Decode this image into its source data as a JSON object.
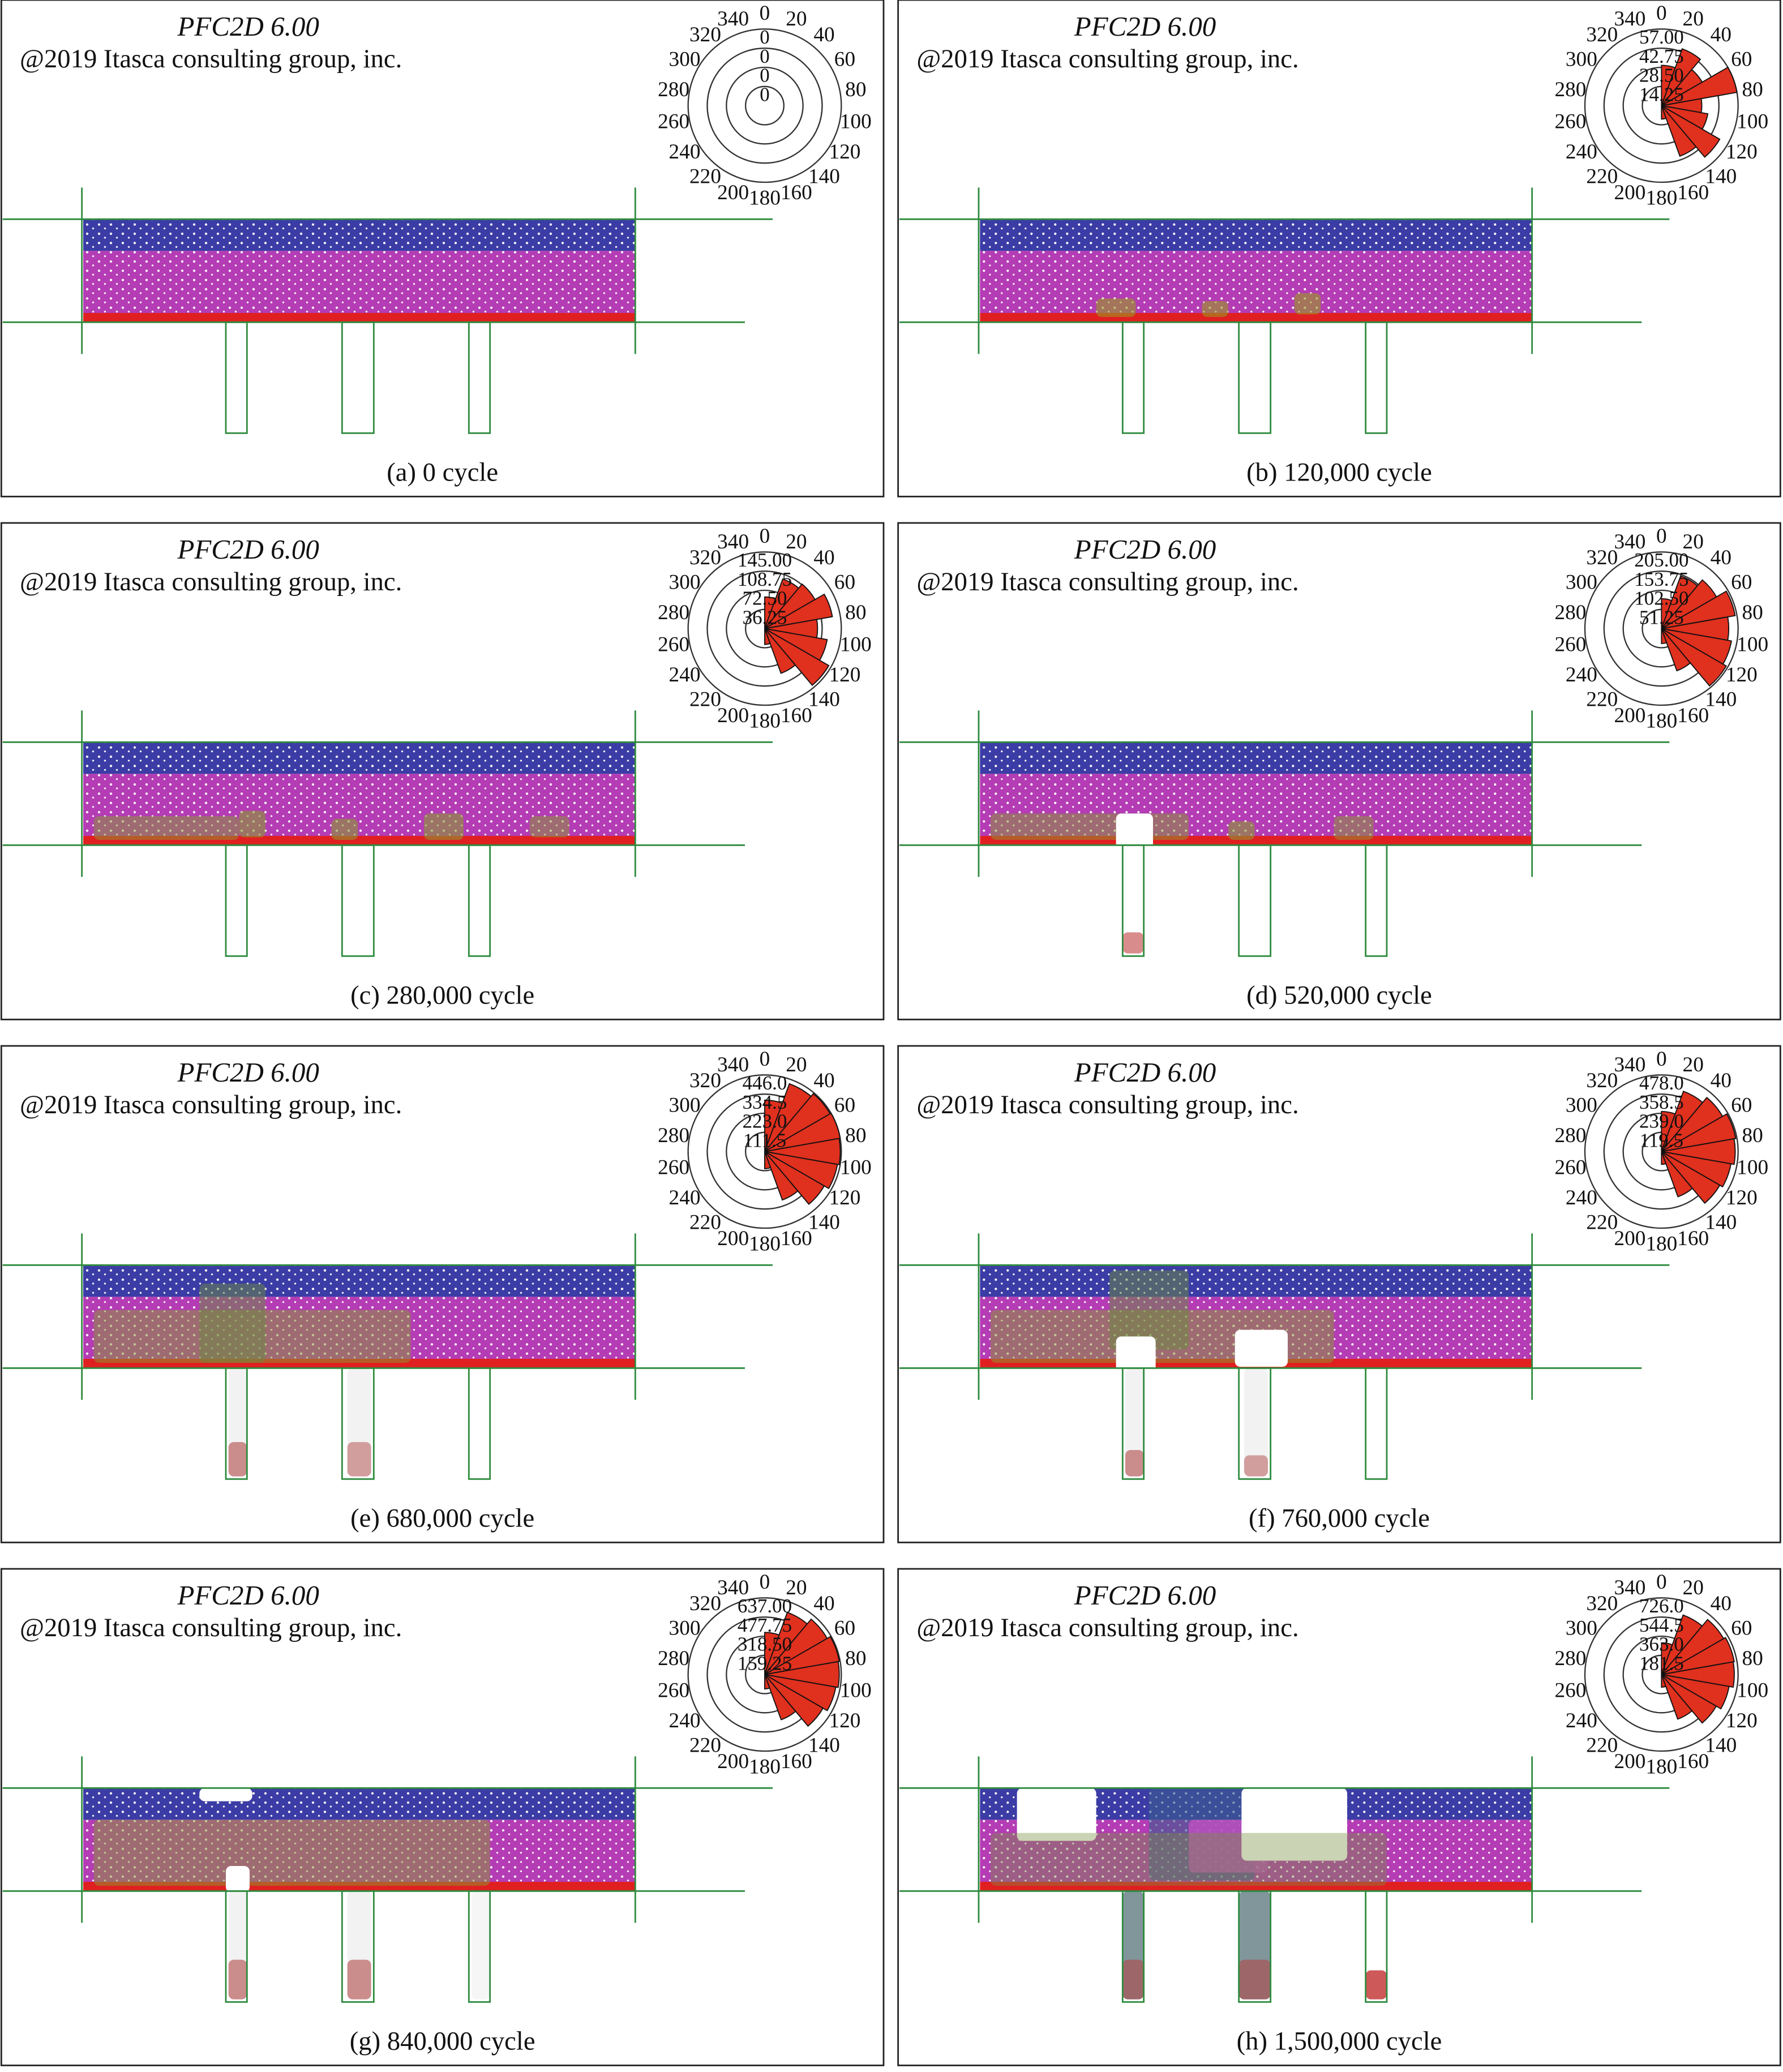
{
  "angle_labels": [
    0,
    20,
    40,
    60,
    80,
    100,
    120,
    140,
    160,
    180,
    200,
    220,
    240,
    260,
    280,
    300,
    320,
    340
  ],
  "panels": [
    {
      "software": "PFC2D 6.00",
      "copyright": "@2019 Itasca consulting group, inc.",
      "caption": "(a) 0 cycle",
      "rose": {
        "rings": [
          {
            "value": 0,
            "label": "0"
          },
          {
            "value": 0,
            "label": "0"
          },
          {
            "value": 0,
            "label": "0"
          },
          {
            "value": 0,
            "label": "0"
          }
        ],
        "petals": [
          0,
          0,
          0,
          0,
          0,
          0,
          0,
          0,
          0
        ]
      }
    },
    {
      "software": "PFC2D 6.00",
      "copyright": "@2019 Itasca consulting group, inc.",
      "caption": "(b) 120,000 cycle",
      "rose": {
        "rings": [
          {
            "value": 57,
            "label": "57.00"
          },
          {
            "value": 42.75,
            "label": "42.75"
          },
          {
            "value": 28.5,
            "label": "28.50"
          },
          {
            "value": 14.25,
            "label": "14.25"
          }
        ],
        "petals": [
          30,
          45,
          35,
          57,
          30,
          35,
          50,
          40,
          10
        ]
      }
    },
    {
      "software": "PFC2D 6.00",
      "copyright": "@2019 Itasca consulting group, inc.",
      "caption": "(c) 280,000 cycle",
      "rose": {
        "rings": [
          {
            "value": 145,
            "label": "145.00"
          },
          {
            "value": 108.75,
            "label": "108.75"
          },
          {
            "value": 72.5,
            "label": "72.50"
          },
          {
            "value": 36.25,
            "label": "36.25"
          }
        ],
        "petals": [
          60,
          100,
          110,
          130,
          100,
          120,
          140,
          90,
          30
        ]
      }
    },
    {
      "software": "PFC2D 6.00",
      "copyright": "@2019 Itasca consulting group, inc.",
      "caption": "(d) 520,000 cycle",
      "rose": {
        "rings": [
          {
            "value": 205,
            "label": "205.00"
          },
          {
            "value": 153.75,
            "label": "153.75"
          },
          {
            "value": 102.5,
            "label": "102.50"
          },
          {
            "value": 51.25,
            "label": "51.25"
          }
        ],
        "petals": [
          80,
          150,
          170,
          200,
          180,
          190,
          200,
          120,
          40
        ]
      }
    },
    {
      "software": "PFC2D 6.00",
      "copyright": "@2019 Itasca consulting group, inc.",
      "caption": "(e) 680,000 cycle",
      "rose": {
        "rings": [
          {
            "value": 446,
            "label": "446.0"
          },
          {
            "value": 334.5,
            "label": "334.5"
          },
          {
            "value": 223,
            "label": "223.0"
          },
          {
            "value": 111.5,
            "label": "111.5"
          }
        ],
        "petals": [
          300,
          420,
          440,
          446,
          440,
          430,
          400,
          300,
          100
        ]
      }
    },
    {
      "software": "PFC2D 6.00",
      "copyright": "@2019 Itasca consulting group, inc.",
      "caption": "(f) 760,000 cycle",
      "rose": {
        "rings": [
          {
            "value": 478,
            "label": "478.0"
          },
          {
            "value": 358.5,
            "label": "358.5"
          },
          {
            "value": 239,
            "label": "239.0"
          },
          {
            "value": 119.5,
            "label": "119.5"
          }
        ],
        "petals": [
          250,
          400,
          440,
          470,
          460,
          440,
          420,
          300,
          80
        ]
      }
    },
    {
      "software": "PFC2D 6.00",
      "copyright": "@2019 Itasca consulting group, inc.",
      "caption": "(g) 840,000 cycle",
      "rose": {
        "rings": [
          {
            "value": 637,
            "label": "637.00"
          },
          {
            "value": 477.75,
            "label": "477.75"
          },
          {
            "value": 318.5,
            "label": "318.50"
          },
          {
            "value": 159.25,
            "label": "159.25"
          }
        ],
        "petals": [
          350,
          550,
          600,
          630,
          620,
          600,
          560,
          400,
          120
        ]
      }
    },
    {
      "software": "PFC2D 6.00",
      "copyright": "@2019 Itasca consulting group, inc.",
      "caption": "(h) 1,500,000 cycle",
      "rose": {
        "rings": [
          {
            "value": 726,
            "label": "726.0"
          },
          {
            "value": 544.5,
            "label": "544.5"
          },
          {
            "value": 363,
            "label": "363.0"
          },
          {
            "value": 181.5,
            "label": "181.5"
          }
        ],
        "petals": [
          300,
          600,
          680,
          700,
          690,
          650,
          600,
          450,
          120
        ]
      }
    }
  ]
}
